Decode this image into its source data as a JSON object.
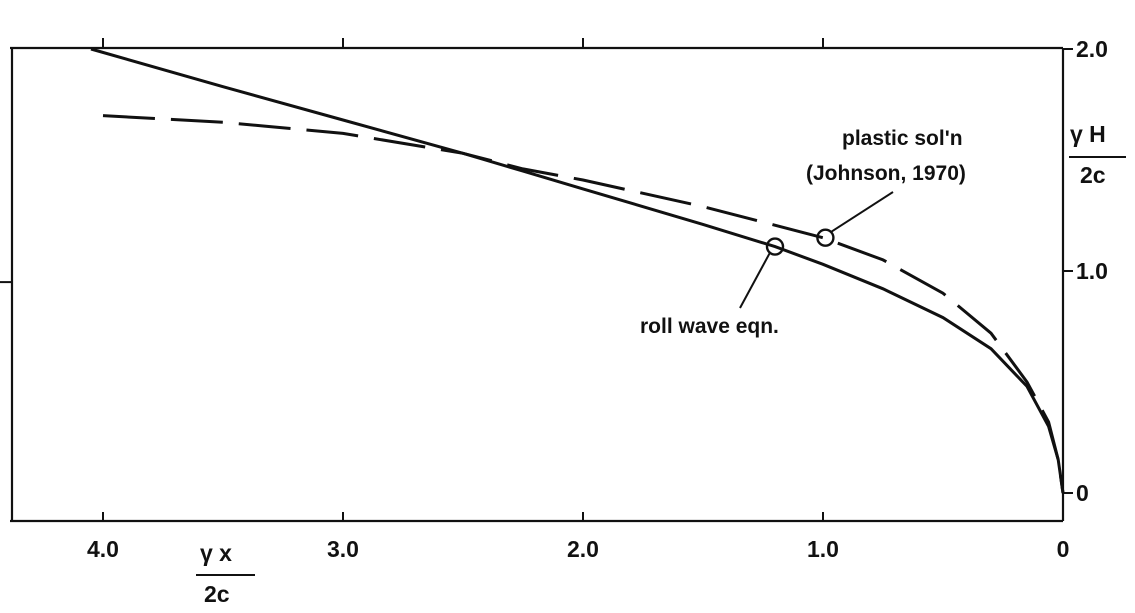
{
  "chart_data": {
    "type": "line",
    "x_axis": {
      "label_symbol": "γ x",
      "label_denominator": "2c",
      "range": [
        4.4,
        0
      ],
      "ticks": [
        4.0,
        3.0,
        2.0,
        1.0,
        0
      ],
      "tick_labels": [
        "4.0",
        "3.0",
        "2.0",
        "1.0",
        "0"
      ]
    },
    "y_axis": {
      "position": "right",
      "label_symbol": "γ H",
      "label_denominator": "2c",
      "range": [
        0,
        2.0
      ],
      "ticks": [
        0,
        1.0,
        2.0
      ],
      "tick_labels": [
        "0",
        "1.0",
        "2.0"
      ]
    },
    "series": [
      {
        "style": "solid",
        "points": [
          [
            4.05,
            2.0
          ],
          [
            3.5,
            1.83
          ],
          [
            3.0,
            1.68
          ],
          [
            2.5,
            1.53
          ],
          [
            2.25,
            1.45
          ],
          [
            2.0,
            1.37
          ],
          [
            1.5,
            1.21
          ],
          [
            1.2,
            1.11
          ],
          [
            1.0,
            1.03
          ],
          [
            0.75,
            0.92
          ],
          [
            0.5,
            0.79
          ],
          [
            0.3,
            0.65
          ],
          [
            0.15,
            0.48
          ],
          [
            0.06,
            0.3
          ],
          [
            0.02,
            0.15
          ],
          [
            0.0,
            0.0
          ]
        ]
      },
      {
        "style": "dashed",
        "points": [
          [
            4.0,
            1.7
          ],
          [
            3.5,
            1.67
          ],
          [
            3.0,
            1.62
          ],
          [
            2.5,
            1.53
          ],
          [
            2.25,
            1.46
          ],
          [
            2.0,
            1.41
          ],
          [
            1.5,
            1.29
          ],
          [
            1.0,
            1.15
          ],
          [
            0.75,
            1.05
          ],
          [
            0.5,
            0.9
          ],
          [
            0.3,
            0.72
          ],
          [
            0.15,
            0.5
          ],
          [
            0.06,
            0.32
          ],
          [
            0.02,
            0.15
          ],
          [
            0.0,
            0.0
          ]
        ]
      }
    ],
    "annotations": [
      {
        "id": "plastic",
        "lines": [
          "plastic  sol'n",
          "(Johnson, 1970)"
        ],
        "marker": [
          0.99,
          1.15
        ],
        "series_index": 1
      },
      {
        "id": "roll",
        "lines": [
          "roll  wave  eqn."
        ],
        "marker": [
          1.2,
          1.11
        ],
        "series_index": 0
      }
    ],
    "grid": false
  }
}
